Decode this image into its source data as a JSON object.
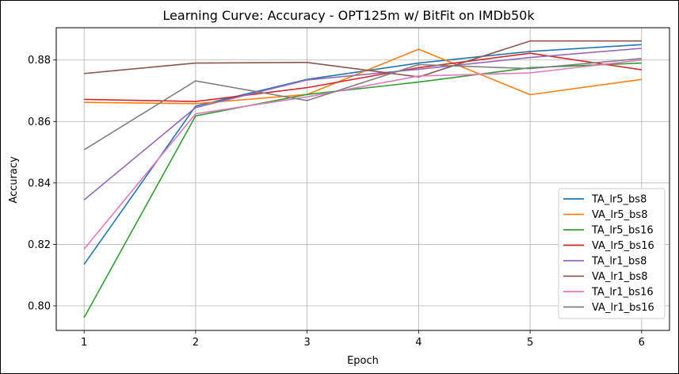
{
  "chart_data": {
    "type": "line",
    "title": "Learning Curve: Accuracy - OPT125m w/ BitFit on IMDb50k",
    "xlabel": "Epoch",
    "ylabel": "Accuracy",
    "x": [
      1,
      2,
      3,
      4,
      5,
      6
    ],
    "xlim": [
      0.75,
      6.25
    ],
    "ylim": [
      0.792,
      0.8905
    ],
    "xticks": [
      "1",
      "2",
      "3",
      "4",
      "5",
      "6"
    ],
    "yticks": [
      "0.80",
      "0.82",
      "0.84",
      "0.86",
      "0.88"
    ],
    "ytick_values": [
      0.8,
      0.82,
      0.84,
      0.86,
      0.88
    ],
    "grid": true,
    "legend_position": "lower-right",
    "series": [
      {
        "name": "TA_lr5_bs8",
        "color": "#1f77b4",
        "values": [
          0.8135,
          0.865,
          0.8737,
          0.879,
          0.8828,
          0.885
        ]
      },
      {
        "name": "VA_lr5_bs8",
        "color": "#ff7f0e",
        "values": [
          0.8662,
          0.8658,
          0.8688,
          0.8835,
          0.8687,
          0.8737
        ]
      },
      {
        "name": "TA_lr5_bs16",
        "color": "#2ca02c",
        "values": [
          0.7962,
          0.8618,
          0.8688,
          0.8728,
          0.8775,
          0.879
        ]
      },
      {
        "name": "VA_lr5_bs16",
        "color": "#d62728",
        "values": [
          0.8672,
          0.8665,
          0.871,
          0.8775,
          0.8822,
          0.8768
        ]
      },
      {
        "name": "TA_lr1_bs8",
        "color": "#9467bd",
        "values": [
          0.8345,
          0.8645,
          0.8735,
          0.877,
          0.8808,
          0.8838
        ]
      },
      {
        "name": "VA_lr1_bs8",
        "color": "#8c564b",
        "values": [
          0.8756,
          0.879,
          0.8792,
          0.8745,
          0.8862,
          0.8862
        ]
      },
      {
        "name": "TA_lr1_bs16",
        "color": "#e377c2",
        "values": [
          0.8185,
          0.8625,
          0.868,
          0.8748,
          0.8758,
          0.88
        ]
      },
      {
        "name": "VA_lr1_bs16",
        "color": "#7f7f7f",
        "values": [
          0.8508,
          0.8732,
          0.8668,
          0.8785,
          0.8772,
          0.8805
        ]
      }
    ]
  }
}
